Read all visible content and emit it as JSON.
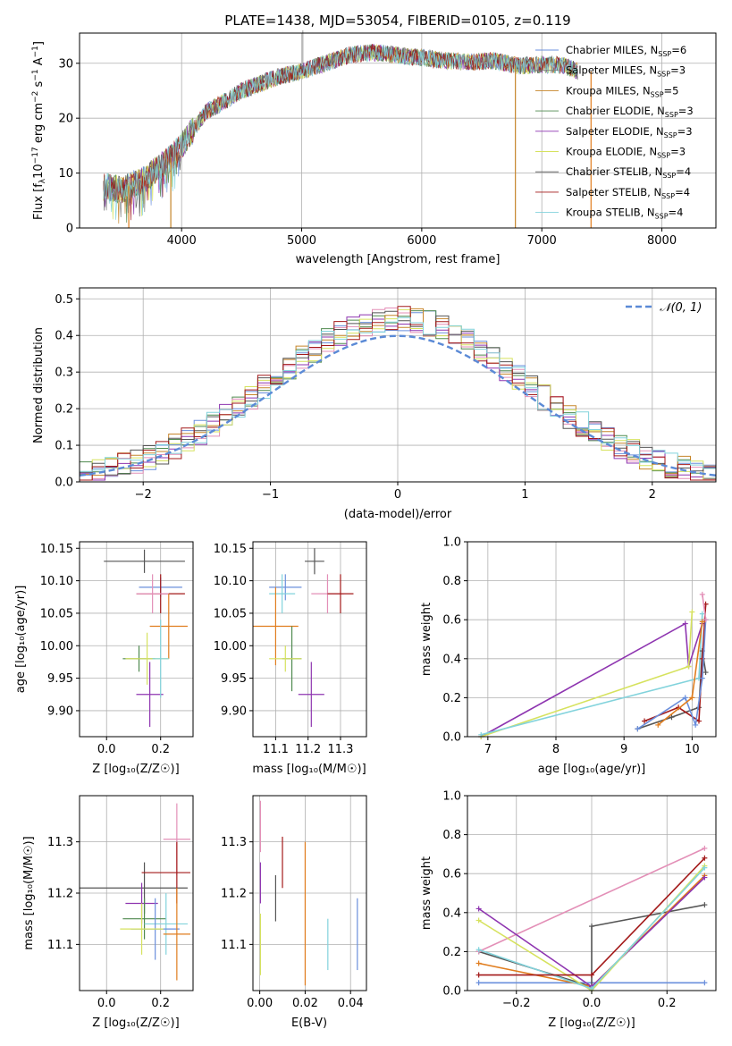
{
  "title": "PLATE=1438, MJD=53054, FIBERID=0105, z=0.119",
  "colors": [
    "#6a8fdc",
    "#7b7b7b",
    "#c6852a",
    "#4f8a4f",
    "#8e35b0",
    "#d6e25e",
    "#555555",
    "#a31a1a",
    "#82d3dc",
    "#e07d1e",
    "#e38fb7"
  ],
  "legend_spectra": [
    {
      "pre": "Chabrier MILES, N",
      "sub": "SSP",
      "post": "=6",
      "color": "#6a8fdc"
    },
    {
      "pre": "Salpeter MILES, N",
      "sub": "SSP",
      "post": "=3",
      "color": "#7b7b7b"
    },
    {
      "pre": "Kroupa MILES, N",
      "sub": "SSP",
      "post": "=5",
      "color": "#c6852a"
    },
    {
      "pre": "Chabrier ELODIE, N",
      "sub": "SSP",
      "post": "=3",
      "color": "#4f8a4f"
    },
    {
      "pre": "Salpeter ELODIE, N",
      "sub": "SSP",
      "post": "=3",
      "color": "#8e35b0"
    },
    {
      "pre": "Kroupa ELODIE, N",
      "sub": "SSP",
      "post": "=3",
      "color": "#d6e25e"
    },
    {
      "pre": "Chabrier STELIB, N",
      "sub": "SSP",
      "post": "=4",
      "color": "#555555"
    },
    {
      "pre": "Salpeter STELIB, N",
      "sub": "SSP",
      "post": "=4",
      "color": "#a31a1a"
    },
    {
      "pre": "Kroupa STELIB, N",
      "sub": "SSP",
      "post": "=4",
      "color": "#82d3dc"
    }
  ],
  "chart_data": [
    {
      "type": "line",
      "title": "PLATE=1438, MJD=53054, FIBERID=0105, z=0.119",
      "xlabel": "wavelength [Angstrom, rest frame]",
      "ylabel_parts": {
        "a": "Flux [f",
        "a_sub": "λ",
        "b": "10",
        "b_sup": "−17",
        "c": " erg cm",
        "c_sup": "−2",
        "d": " s",
        "d_sup": "−1",
        "e": " A",
        "e_sup": "−1",
        "f": "]"
      },
      "xlim": [
        3150,
        8450
      ],
      "ylim": [
        0,
        35.5
      ],
      "xticks": [
        "4000",
        "5000",
        "6000",
        "7000",
        "8000"
      ],
      "yticks": [
        "0",
        "10",
        "20",
        "30"
      ],
      "continuum_x": [
        3350,
        3500,
        3700,
        3900,
        4000,
        4200,
        4500,
        4800,
        5000,
        5200,
        5400,
        5600,
        5800,
        6000,
        6200,
        6400,
        6600,
        6800,
        7000,
        7200,
        7300
      ],
      "continuum_y": [
        7.5,
        7.0,
        9.0,
        12.5,
        15,
        21,
        25,
        27.5,
        28.5,
        30,
        31.5,
        32,
        31.5,
        31,
        30.5,
        30.2,
        30.5,
        29.5,
        29.8,
        29.5,
        28.5
      ]
    },
    {
      "type": "line",
      "xlabel": "(data-model)/error",
      "ylabel": "Normed distribution",
      "xlim": [
        -2.5,
        2.5
      ],
      "ylim": [
        0,
        0.53
      ],
      "xticks": [
        "−2",
        "−1",
        "0",
        "1",
        "2"
      ],
      "yticks": [
        "0.0",
        "0.1",
        "0.2",
        "0.3",
        "0.4",
        "0.5"
      ],
      "legend": "𝒩(0, 1)"
    },
    {
      "type": "scatter",
      "xlabel": "Z [log₁₀(Z/Z☉)]",
      "ylabel": "age  [log₁₀(age/yr)]",
      "xlim": [
        -0.1,
        0.32
      ],
      "ylim": [
        9.86,
        10.16
      ],
      "xticks": [
        "0.0",
        "0.2"
      ],
      "yticks": [
        "9.90",
        "9.95",
        "10.00",
        "10.05",
        "10.10",
        "10.15"
      ]
    },
    {
      "type": "scatter",
      "xlabel": "mass [log₁₀(M/M☉)]",
      "xlim": [
        11.03,
        11.38
      ],
      "ylim": [
        9.86,
        10.16
      ],
      "xticks": [
        "11.1",
        "11.2",
        "11.3"
      ],
      "yticks": [
        "9.90",
        "9.95",
        "10.00",
        "10.05",
        "10.10",
        "10.15"
      ]
    },
    {
      "type": "line",
      "xlabel": "age  [log₁₀(age/yr)]",
      "ylabel": "mass weight",
      "xlim": [
        6.7,
        10.35
      ],
      "ylim": [
        0,
        1.0
      ],
      "xticks": [
        "7",
        "8",
        "9",
        "10"
      ],
      "yticks": [
        "0.0",
        "0.2",
        "0.4",
        "0.6",
        "0.8",
        "1.0"
      ]
    },
    {
      "type": "scatter",
      "xlabel": "Z [log₁₀(Z/Z☉)]",
      "ylabel": "mass [log₁₀(M/M☉)]",
      "xlim": [
        -0.1,
        0.32
      ],
      "ylim": [
        11.01,
        11.39
      ],
      "xticks": [
        "0.0",
        "0.2"
      ],
      "yticks": [
        "11.1",
        "11.2",
        "11.3"
      ]
    },
    {
      "type": "scatter",
      "xlabel": "E(B-V)",
      "xlim": [
        -0.003,
        0.047
      ],
      "ylim": [
        11.01,
        11.39
      ],
      "xticks": [
        "0.00",
        "0.02",
        "0.04"
      ],
      "yticks": [
        "11.1",
        "11.2",
        "11.3"
      ]
    },
    {
      "type": "line",
      "xlabel": "Z [log₁₀(Z/Z☉)]",
      "ylabel": "mass weight",
      "xlim": [
        -0.33,
        0.33
      ],
      "ylim": [
        0,
        1.0
      ],
      "xticks": [
        "−0.2",
        "0.0",
        "0.2"
      ],
      "yticks": [
        "0.0",
        "0.2",
        "0.4",
        "0.6",
        "0.8",
        "1.0"
      ]
    }
  ]
}
